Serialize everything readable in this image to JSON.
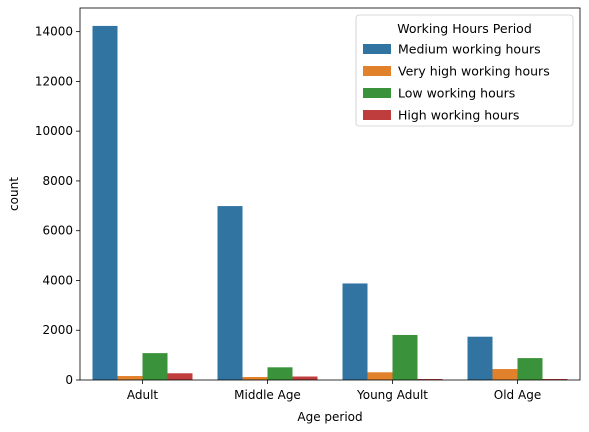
{
  "chart_data": {
    "type": "bar",
    "title": "",
    "xlabel": "Age period",
    "ylabel": "count",
    "categories": [
      "Adult",
      "Middle Age",
      "Young Adult",
      "Old Age"
    ],
    "series": [
      {
        "name": "Medium working hours",
        "color": "#3274a1",
        "values": [
          14230,
          6990,
          3880,
          1740
        ]
      },
      {
        "name": "Very high working hours",
        "color": "#e1812c",
        "values": [
          160,
          120,
          310,
          440
        ]
      },
      {
        "name": "Low working hours",
        "color": "#3a923a",
        "values": [
          1080,
          510,
          1810,
          880
        ]
      },
      {
        "name": "High working hours",
        "color": "#c03d3e",
        "values": [
          270,
          140,
          40,
          40
        ]
      }
    ],
    "ylim": [
      0,
      14950
    ],
    "yticks": [
      0,
      2000,
      4000,
      6000,
      8000,
      10000,
      12000,
      14000
    ],
    "legend": {
      "title": "Working Hours Period",
      "position": "top-right"
    },
    "grid": false
  }
}
